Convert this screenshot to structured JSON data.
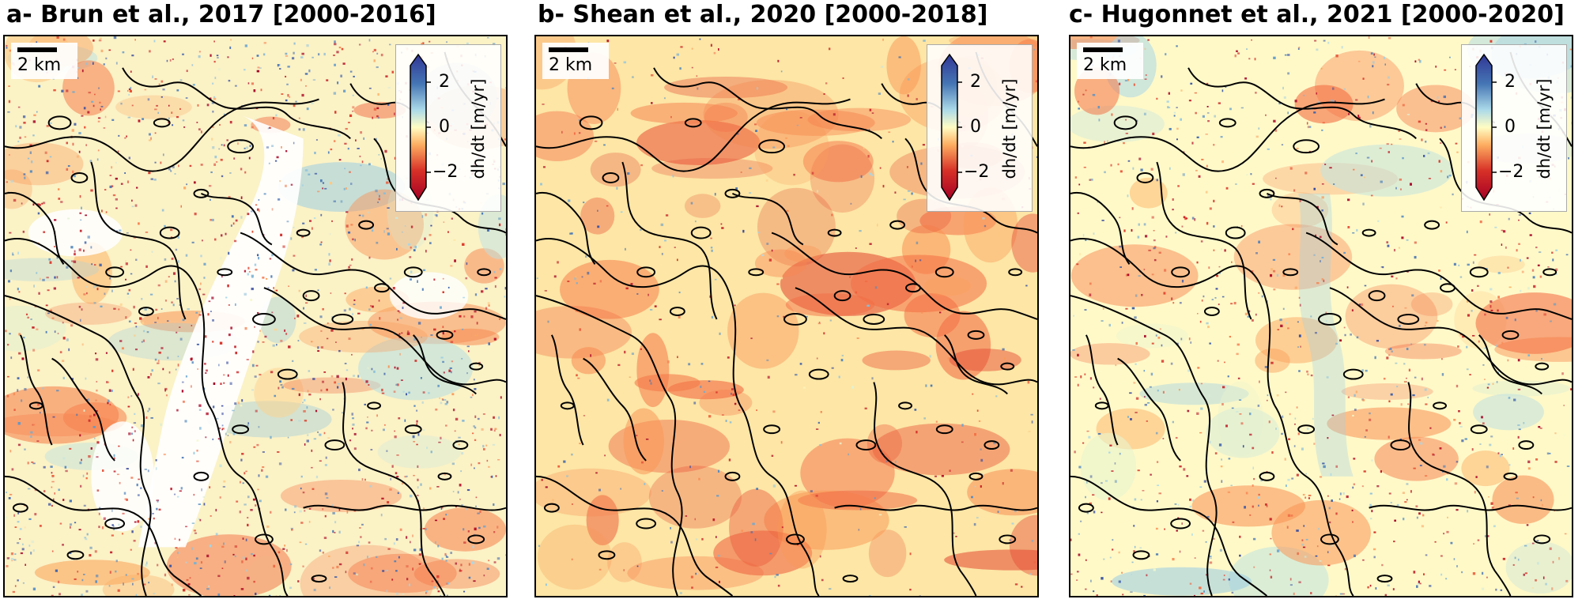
{
  "scale_bar_label": "2 km",
  "colorbar": {
    "label": "dh/dt [m/yr]",
    "ticks": [
      "2",
      "0",
      "−2"
    ],
    "range": [
      -3,
      3
    ],
    "colors": {
      "low": "#a50026",
      "mid": "#fffdc4",
      "high": "#313695"
    }
  },
  "panels": [
    {
      "title": "a- Brun et al., 2017 [2000-2016]",
      "base_color": "#fbf2c6",
      "speckle": "high",
      "nodata_valley": true
    },
    {
      "title": "b- Shean et al., 2020 [2000-2018]",
      "base_color": "#fde6a6",
      "speckle": "low",
      "nodata_valley": false
    },
    {
      "title": "c- Hugonnet et al., 2021 [2000-2020]",
      "base_color": "#fff9c8",
      "speckle": "medium",
      "nodata_valley": false
    }
  ]
}
